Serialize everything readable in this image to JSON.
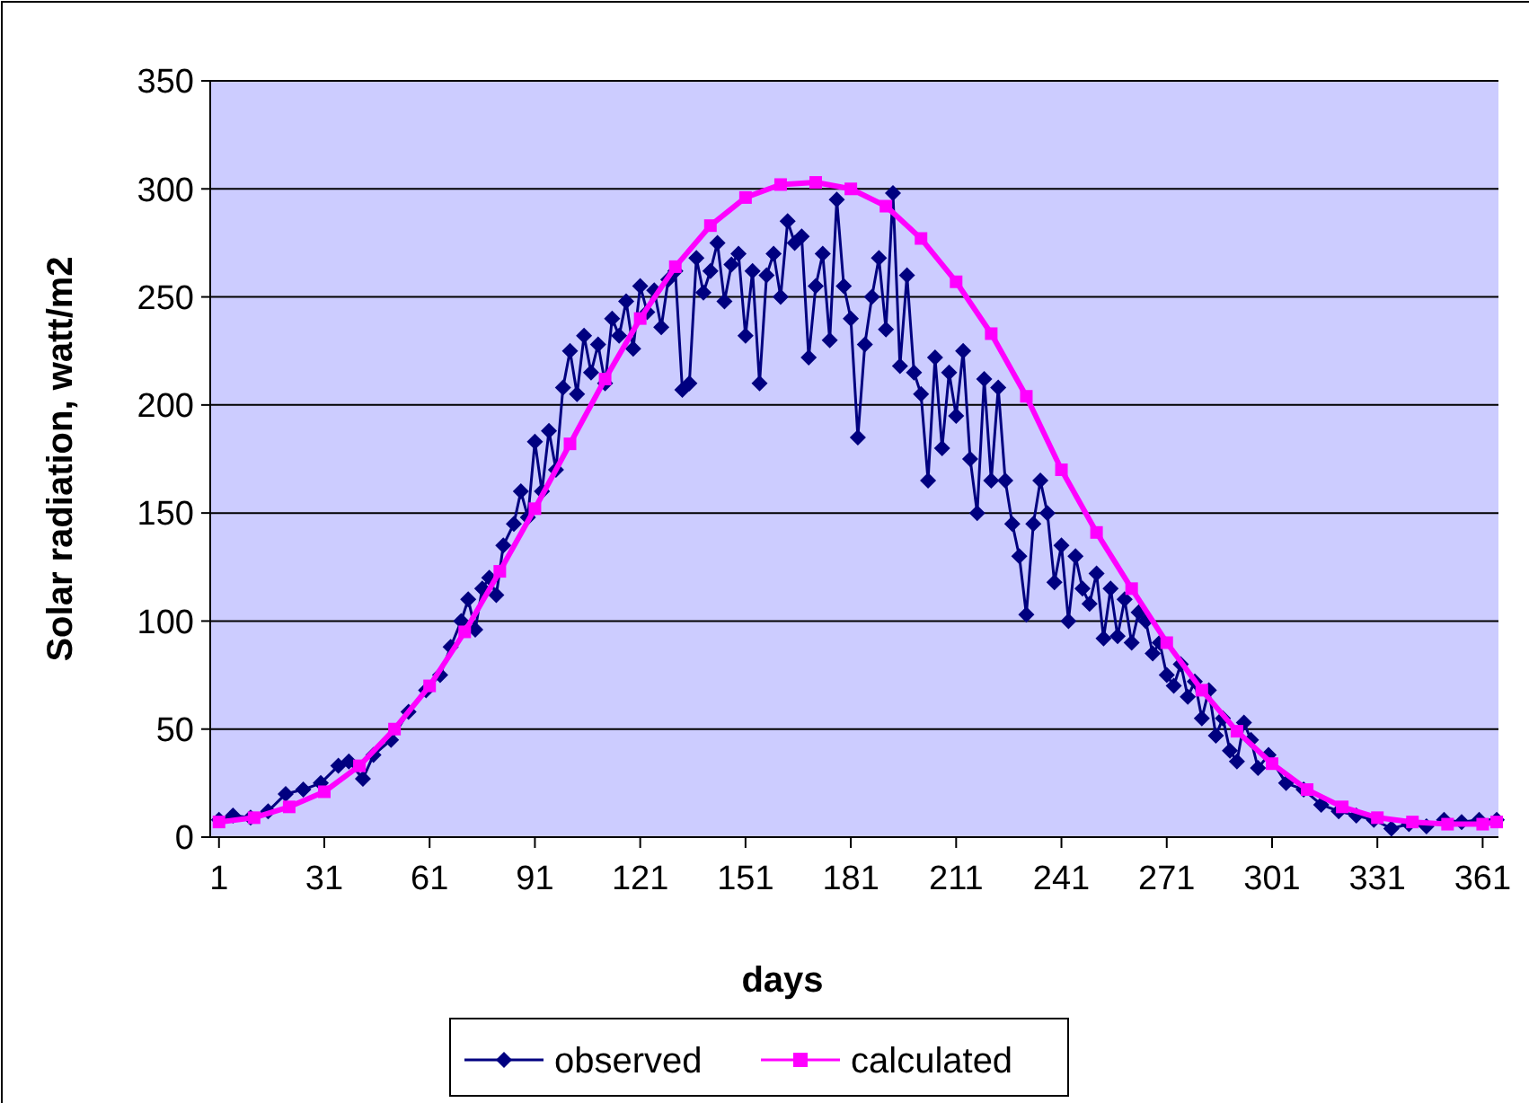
{
  "chart_data": {
    "type": "line",
    "xlabel": "days",
    "ylabel": "Solar radiation, watt/m2",
    "xlim": [
      -1.5,
      365.5
    ],
    "xticks": [
      1,
      31,
      61,
      91,
      121,
      151,
      181,
      211,
      241,
      271,
      301,
      331,
      361
    ],
    "ylim": [
      0,
      350
    ],
    "yticks": [
      0,
      50,
      100,
      150,
      200,
      250,
      300,
      350
    ],
    "grid": "y",
    "legend": "bottom",
    "series": [
      {
        "name": "observed",
        "color": "#000080",
        "marker": "diamond",
        "x": [
          1,
          5,
          10,
          15,
          20,
          25,
          30,
          35,
          38,
          42,
          45,
          50,
          55,
          60,
          64,
          67,
          70,
          72,
          74,
          76,
          78,
          80,
          82,
          85,
          87,
          89,
          91,
          93,
          95,
          97,
          99,
          101,
          103,
          105,
          107,
          109,
          111,
          113,
          115,
          117,
          119,
          121,
          123,
          125,
          127,
          129,
          131,
          133,
          135,
          137,
          139,
          141,
          143,
          145,
          147,
          149,
          151,
          153,
          155,
          157,
          159,
          161,
          163,
          165,
          167,
          169,
          171,
          173,
          175,
          177,
          179,
          181,
          183,
          185,
          187,
          189,
          191,
          193,
          195,
          197,
          199,
          201,
          203,
          205,
          207,
          209,
          211,
          213,
          215,
          217,
          219,
          221,
          223,
          225,
          227,
          229,
          231,
          233,
          235,
          237,
          239,
          241,
          243,
          245,
          247,
          249,
          251,
          253,
          255,
          257,
          259,
          261,
          263,
          265,
          267,
          269,
          271,
          273,
          275,
          277,
          279,
          281,
          283,
          285,
          287,
          289,
          291,
          293,
          295,
          297,
          300,
          305,
          310,
          315,
          320,
          325,
          330,
          335,
          340,
          345,
          350,
          355,
          360,
          365
        ],
        "values": [
          8,
          10,
          9,
          12,
          20,
          22,
          25,
          33,
          35,
          27,
          38,
          45,
          58,
          68,
          75,
          88,
          100,
          110,
          96,
          115,
          120,
          112,
          135,
          145,
          160,
          148,
          183,
          160,
          188,
          170,
          208,
          225,
          205,
          232,
          215,
          228,
          210,
          240,
          232,
          248,
          226,
          255,
          243,
          253,
          236,
          258,
          262,
          207,
          210,
          268,
          252,
          262,
          275,
          248,
          265,
          270,
          232,
          262,
          210,
          260,
          270,
          250,
          285,
          275,
          278,
          222,
          255,
          270,
          230,
          295,
          255,
          240,
          185,
          228,
          250,
          268,
          235,
          298,
          218,
          260,
          215,
          205,
          165,
          222,
          180,
          215,
          195,
          225,
          175,
          150,
          212,
          165,
          208,
          165,
          145,
          130,
          103,
          145,
          165,
          150,
          118,
          135,
          100,
          130,
          115,
          108,
          122,
          92,
          115,
          93,
          110,
          90,
          104,
          100,
          85,
          90,
          75,
          70,
          80,
          65,
          72,
          55,
          68,
          47,
          55,
          40,
          35,
          53,
          45,
          32,
          38,
          25,
          22,
          15,
          12,
          10,
          8,
          4,
          6,
          5,
          8,
          7,
          8,
          8
        ]
      },
      {
        "name": "calculated",
        "color": "#ff00ff",
        "marker": "square",
        "x": [
          1,
          11,
          21,
          31,
          41,
          51,
          61,
          71,
          81,
          91,
          101,
          111,
          121,
          131,
          141,
          151,
          161,
          171,
          181,
          191,
          201,
          211,
          221,
          231,
          241,
          251,
          261,
          271,
          281,
          291,
          301,
          311,
          321,
          331,
          341,
          351,
          361,
          365
        ],
        "values": [
          7,
          9,
          14,
          21,
          33,
          50,
          70,
          95,
          123,
          152,
          182,
          212,
          240,
          264,
          283,
          296,
          302,
          303,
          300,
          292,
          277,
          257,
          233,
          204,
          170,
          141,
          115,
          90,
          68,
          49,
          34,
          22,
          14,
          9,
          7,
          6,
          6,
          7
        ]
      }
    ]
  }
}
